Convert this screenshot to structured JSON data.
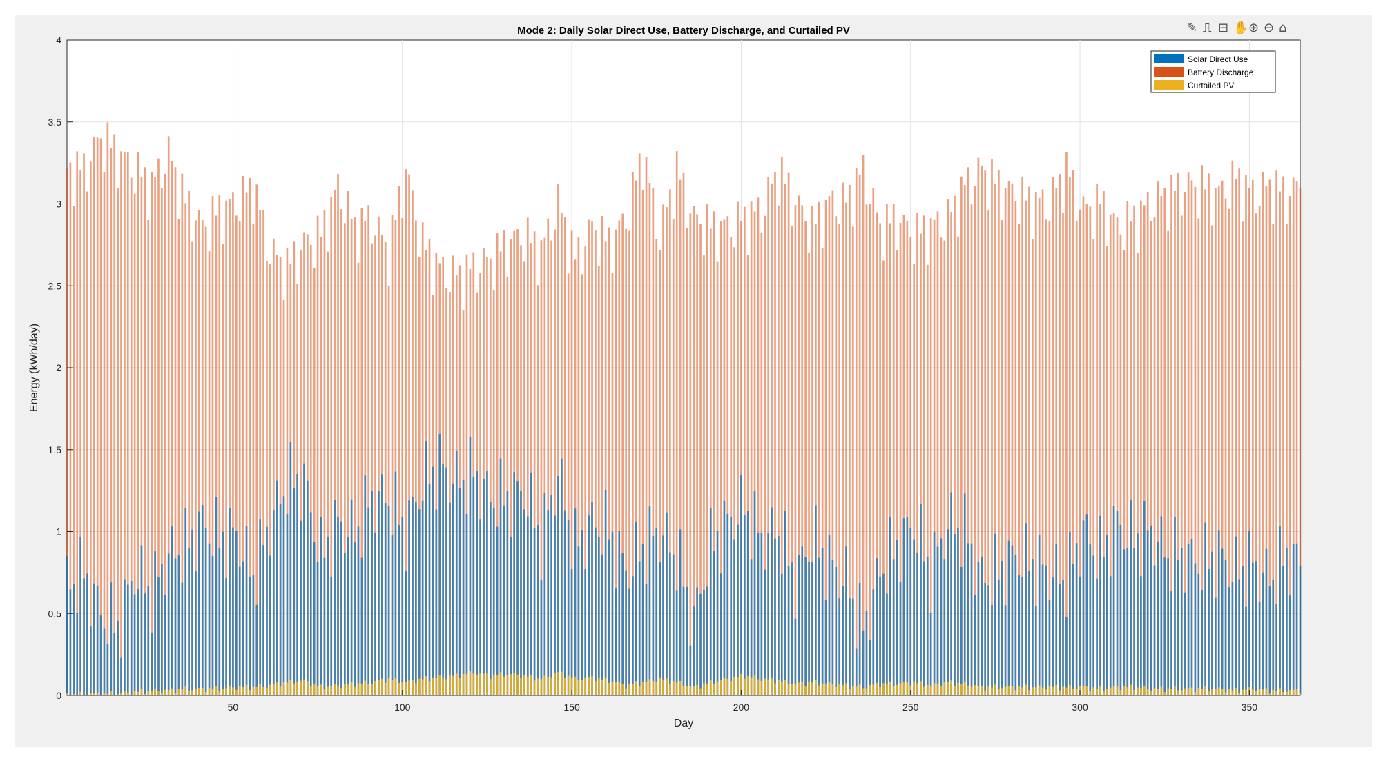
{
  "chart_data": {
    "type": "bar",
    "title": "Mode 2: Daily Solar Direct Use, Battery Discharge, and Curtailed PV",
    "xlabel": "Day",
    "ylabel": "Energy (kWh/day)",
    "xlim": [
      1,
      365
    ],
    "ylim": [
      0,
      4
    ],
    "xticks": [
      50,
      100,
      150,
      200,
      250,
      300,
      350
    ],
    "yticks": [
      0,
      0.5,
      1,
      1.5,
      2,
      2.5,
      3,
      3.5,
      4
    ],
    "ytick_labels": [
      "0",
      "0.5",
      "1",
      "1.5",
      "2",
      "2.5",
      "3",
      "3.5",
      "4"
    ],
    "grid": true,
    "legend_position": "top-right",
    "colors": {
      "Solar Direct Use": "#0072BD",
      "Battery Discharge": "#D95319",
      "Curtailed PV": "#EDB120"
    },
    "series_x_sampled_every_days": 5,
    "x": [
      1,
      6,
      11,
      16,
      21,
      26,
      31,
      36,
      41,
      46,
      51,
      56,
      61,
      66,
      71,
      76,
      81,
      86,
      91,
      96,
      101,
      106,
      111,
      116,
      121,
      126,
      131,
      136,
      141,
      146,
      151,
      156,
      161,
      166,
      171,
      176,
      181,
      186,
      191,
      196,
      201,
      206,
      211,
      216,
      221,
      226,
      231,
      236,
      241,
      246,
      251,
      256,
      261,
      266,
      271,
      276,
      281,
      286,
      291,
      296,
      301,
      306,
      311,
      316,
      321,
      326,
      331,
      336,
      341,
      346,
      351,
      356,
      361,
      365
    ],
    "series": [
      {
        "name": "Solar Direct Use",
        "values": [
          0.67,
          0.74,
          0.5,
          0.41,
          0.75,
          0.62,
          0.85,
          0.9,
          1.05,
          0.95,
          0.98,
          0.72,
          1.05,
          1.3,
          1.3,
          0.85,
          1.05,
          0.98,
          1.2,
          1.2,
          1.0,
          1.3,
          1.4,
          1.3,
          1.35,
          1.2,
          1.2,
          1.25,
          0.95,
          1.35,
          0.9,
          1.05,
          1.0,
          0.75,
          0.9,
          1.0,
          0.85,
          0.45,
          0.9,
          1.05,
          1.15,
          0.95,
          1.0,
          0.7,
          0.95,
          0.8,
          0.7,
          0.4,
          0.75,
          0.9,
          1.05,
          0.75,
          1.05,
          1.0,
          0.7,
          0.75,
          0.85,
          0.8,
          0.75,
          0.7,
          1.0,
          0.85,
          1.05,
          0.95,
          1.0,
          0.85,
          0.85,
          0.8,
          0.85,
          0.75,
          0.8,
          0.7,
          0.85,
          0.8
        ]
      },
      {
        "name": "Battery Discharge",
        "values": [
          3.2,
          3.2,
          3.4,
          3.3,
          3.2,
          3.1,
          3.3,
          3.0,
          2.85,
          2.95,
          3.0,
          3.1,
          2.7,
          2.6,
          2.75,
          2.8,
          3.1,
          2.85,
          2.9,
          2.7,
          3.2,
          2.75,
          2.6,
          2.55,
          2.6,
          2.65,
          2.75,
          2.8,
          2.7,
          3.0,
          2.65,
          2.85,
          2.75,
          2.9,
          3.3,
          2.8,
          3.2,
          2.9,
          2.85,
          2.85,
          2.9,
          2.95,
          3.2,
          3.0,
          2.85,
          3.0,
          3.0,
          3.2,
          2.85,
          2.9,
          2.8,
          2.85,
          2.9,
          3.1,
          3.2,
          3.1,
          3.05,
          3.0,
          3.0,
          3.2,
          2.95,
          3.0,
          2.85,
          2.9,
          3.0,
          3.05,
          3.1,
          3.1,
          3.05,
          3.15,
          3.05,
          3.1,
          3.05,
          3.1
        ]
      },
      {
        "name": "Curtailed PV",
        "values": [
          0.0,
          0.01,
          0.01,
          0.01,
          0.02,
          0.03,
          0.03,
          0.04,
          0.04,
          0.04,
          0.05,
          0.05,
          0.06,
          0.08,
          0.09,
          0.05,
          0.06,
          0.07,
          0.08,
          0.1,
          0.08,
          0.1,
          0.11,
          0.12,
          0.14,
          0.12,
          0.13,
          0.12,
          0.1,
          0.14,
          0.1,
          0.11,
          0.09,
          0.06,
          0.08,
          0.1,
          0.08,
          0.05,
          0.08,
          0.1,
          0.12,
          0.1,
          0.09,
          0.07,
          0.08,
          0.07,
          0.06,
          0.05,
          0.07,
          0.07,
          0.08,
          0.06,
          0.08,
          0.07,
          0.05,
          0.05,
          0.05,
          0.05,
          0.05,
          0.05,
          0.05,
          0.04,
          0.05,
          0.05,
          0.04,
          0.04,
          0.04,
          0.04,
          0.04,
          0.03,
          0.04,
          0.03,
          0.03,
          0.03
        ]
      }
    ]
  }
}
